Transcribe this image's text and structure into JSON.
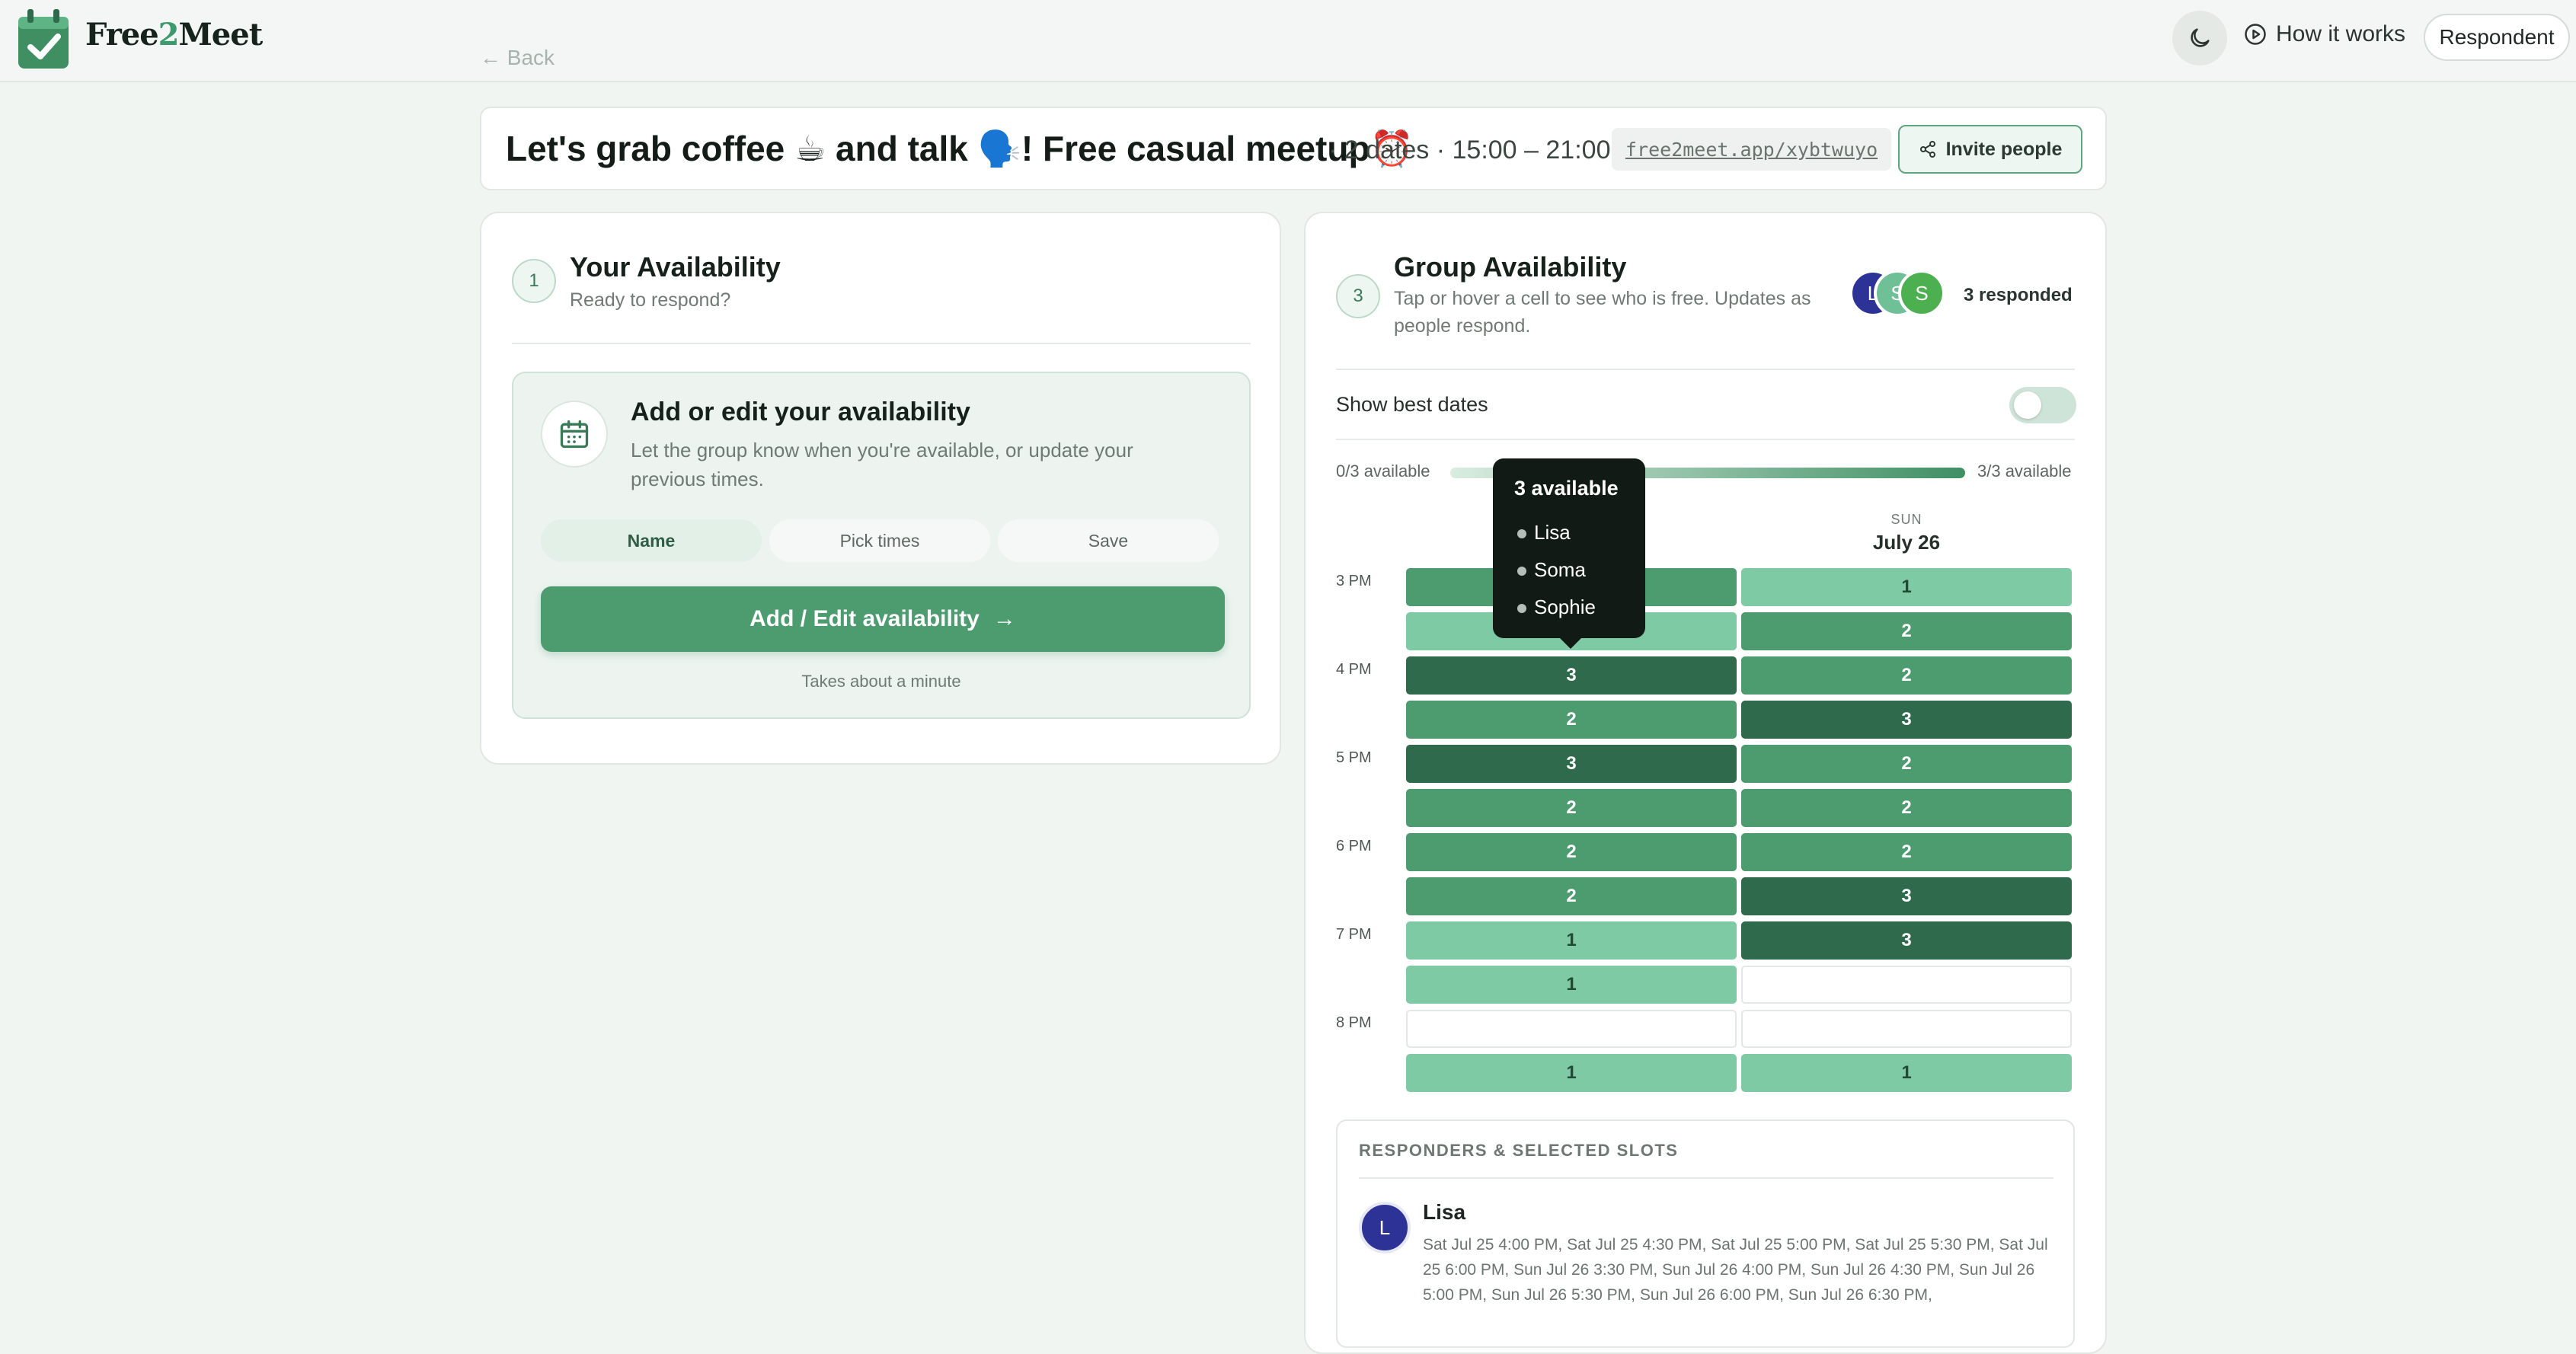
{
  "header": {
    "brand_a": "Free",
    "brand_b": "2",
    "brand_c": "Meet",
    "back": "← Back",
    "how_it_works": "How it works",
    "role_button": "Respondent"
  },
  "event": {
    "title": "Let's grab coffee ☕ and talk 🗣️! Free casual meetup⏰",
    "meta": "· 2 dates · 15:00 – 21:00",
    "link": "free2meet.app/xybtwuyo",
    "invite": "Invite people"
  },
  "your_availability": {
    "step": "1",
    "title": "Your Availability",
    "subtitle": "Ready to respond?",
    "box_title": "Add or edit your availability",
    "box_desc_1": "Let the group know when you're available, or update your",
    "box_desc_2": "previous times.",
    "steps": [
      "Name",
      "Pick times",
      "Save"
    ],
    "cta": "Add / Edit availability",
    "cta_arrow": "→",
    "note": "Takes about a minute"
  },
  "group": {
    "step": "3",
    "title": "Group Availability",
    "desc_1": "Tap or hover a cell to see who is free. Updates as",
    "desc_2": "people respond.",
    "avatars": [
      {
        "initial": "L",
        "color": "#2d3297"
      },
      {
        "initial": "S",
        "color": "#6fbf97"
      },
      {
        "initial": "S",
        "color": "#4caf50"
      }
    ],
    "responded": "3 responded",
    "best_dates_label": "Show best dates",
    "legend_min": "0/3 available",
    "legend_max": "3/3 available",
    "days": [
      {
        "dow": "",
        "date": ""
      },
      {
        "dow": "SUN",
        "date": "July 26"
      }
    ],
    "time_labels": [
      "3 PM",
      "4 PM",
      "5 PM",
      "6 PM",
      "7 PM",
      "8 PM"
    ],
    "grid": [
      [
        2,
        1
      ],
      [
        1,
        2
      ],
      [
        3,
        2
      ],
      [
        2,
        3
      ],
      [
        3,
        2
      ],
      [
        2,
        2
      ],
      [
        2,
        2
      ],
      [
        2,
        3
      ],
      [
        1,
        3
      ],
      [
        1,
        0
      ],
      [
        0,
        0
      ],
      [
        1,
        1
      ]
    ],
    "tooltip": {
      "title": "3 available",
      "names": [
        "Lisa",
        "Soma",
        "Sophie"
      ]
    },
    "responders_heading": "RESPONDERS & SELECTED SLOTS",
    "responders": [
      {
        "initial": "L",
        "name": "Lisa",
        "slots": "Sat Jul 25 4:00 PM, Sat Jul 25 4:30 PM, Sat Jul 25 5:00 PM, Sat Jul 25 5:30 PM, Sat Jul 25 6:00 PM, Sun Jul 26 3:30 PM, Sun Jul 26 4:00 PM, Sun Jul 26 4:30 PM, Sun Jul 26 5:00 PM, Sun Jul 26 5:30 PM, Sun Jul 26 6:00 PM, Sun Jul 26 6:30 PM,"
      }
    ]
  },
  "colors": {
    "accent": "#4c9c70",
    "level1": "#7ecaa4",
    "level2": "#4c9c70",
    "level3": "#2f6a4d"
  }
}
